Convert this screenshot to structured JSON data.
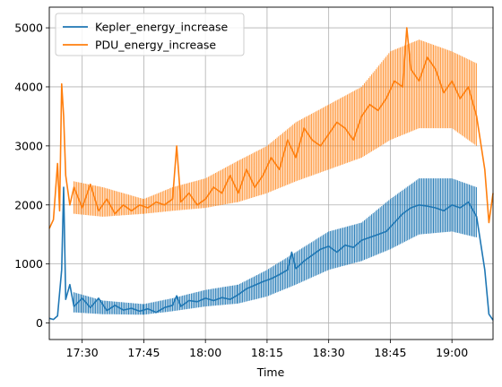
{
  "chart_data": {
    "type": "line",
    "title": "",
    "xlabel": "Time",
    "ylabel": "",
    "x_unit": "HH:MM (time of day)",
    "xlim": [
      "17:22",
      "19:10"
    ],
    "ylim": [
      -280,
      5350
    ],
    "x_ticks": [
      "17:30",
      "17:45",
      "18:00",
      "18:15",
      "18:30",
      "18:45",
      "19:00"
    ],
    "y_ticks": [
      0,
      1000,
      2000,
      3000,
      4000,
      5000
    ],
    "grid": true,
    "legend_position": "top-left",
    "series": [
      {
        "name": "Kepler_energy_increase",
        "color": "#1f77b4",
        "points": [
          [
            "17:22",
            80
          ],
          [
            "17:23",
            60
          ],
          [
            "17:24",
            120
          ],
          [
            "17:25",
            900
          ],
          [
            "17:25.5",
            2300
          ],
          [
            "17:26",
            400
          ],
          [
            "17:27",
            650
          ],
          [
            "17:28",
            280
          ],
          [
            "17:30",
            420
          ],
          [
            "17:32",
            260
          ],
          [
            "17:34",
            420
          ],
          [
            "17:36",
            210
          ],
          [
            "17:38",
            300
          ],
          [
            "17:40",
            220
          ],
          [
            "17:42",
            250
          ],
          [
            "17:44",
            200
          ],
          [
            "17:46",
            240
          ],
          [
            "17:48",
            180
          ],
          [
            "17:50",
            260
          ],
          [
            "17:52",
            300
          ],
          [
            "17:53",
            460
          ],
          [
            "17:54",
            280
          ],
          [
            "17:56",
            380
          ],
          [
            "17:58",
            360
          ],
          [
            "18:00",
            420
          ],
          [
            "18:02",
            380
          ],
          [
            "18:04",
            430
          ],
          [
            "18:06",
            400
          ],
          [
            "18:08",
            480
          ],
          [
            "18:10",
            580
          ],
          [
            "18:12",
            640
          ],
          [
            "18:14",
            700
          ],
          [
            "18:16",
            750
          ],
          [
            "18:18",
            820
          ],
          [
            "18:20",
            900
          ],
          [
            "18:21",
            1200
          ],
          [
            "18:22",
            920
          ],
          [
            "18:24",
            1050
          ],
          [
            "18:26",
            1150
          ],
          [
            "18:28",
            1250
          ],
          [
            "18:30",
            1300
          ],
          [
            "18:32",
            1200
          ],
          [
            "18:34",
            1320
          ],
          [
            "18:36",
            1280
          ],
          [
            "18:38",
            1400
          ],
          [
            "18:40",
            1450
          ],
          [
            "18:42",
            1500
          ],
          [
            "18:44",
            1550
          ],
          [
            "18:46",
            1700
          ],
          [
            "18:48",
            1850
          ],
          [
            "18:50",
            1950
          ],
          [
            "18:52",
            2000
          ],
          [
            "18:54",
            1980
          ],
          [
            "18:56",
            1950
          ],
          [
            "18:58",
            1900
          ],
          [
            "19:00",
            2000
          ],
          [
            "19:02",
            1950
          ],
          [
            "19:04",
            2050
          ],
          [
            "19:06",
            1800
          ],
          [
            "19:08",
            900
          ],
          [
            "19:09",
            150
          ],
          [
            "19:10",
            50
          ]
        ],
        "band": [
          [
            "17:28",
            180,
            520
          ],
          [
            "17:35",
            150,
            380
          ],
          [
            "17:45",
            140,
            320
          ],
          [
            "17:52",
            200,
            420
          ],
          [
            "18:00",
            280,
            560
          ],
          [
            "18:08",
            330,
            650
          ],
          [
            "18:15",
            450,
            900
          ],
          [
            "18:22",
            650,
            1200
          ],
          [
            "18:30",
            900,
            1550
          ],
          [
            "18:38",
            1050,
            1700
          ],
          [
            "18:45",
            1250,
            2100
          ],
          [
            "18:52",
            1500,
            2450
          ],
          [
            "19:00",
            1550,
            2450
          ],
          [
            "19:06",
            1450,
            2300
          ]
        ]
      },
      {
        "name": "PDU_energy_increase",
        "color": "#ff7f0e",
        "points": [
          [
            "17:22",
            1600
          ],
          [
            "17:23",
            1750
          ],
          [
            "17:24",
            2700
          ],
          [
            "17:24.5",
            1900
          ],
          [
            "17:25",
            4050
          ],
          [
            "17:25.5",
            3500
          ],
          [
            "17:26",
            2500
          ],
          [
            "17:27",
            2000
          ],
          [
            "17:28",
            2300
          ],
          [
            "17:30",
            1950
          ],
          [
            "17:32",
            2350
          ],
          [
            "17:34",
            1900
          ],
          [
            "17:36",
            2100
          ],
          [
            "17:38",
            1850
          ],
          [
            "17:40",
            2000
          ],
          [
            "17:42",
            1900
          ],
          [
            "17:44",
            2000
          ],
          [
            "17:46",
            1950
          ],
          [
            "17:48",
            2050
          ],
          [
            "17:50",
            2000
          ],
          [
            "17:52",
            2100
          ],
          [
            "17:53",
            3000
          ],
          [
            "17:54",
            2050
          ],
          [
            "17:56",
            2200
          ],
          [
            "17:58",
            2000
          ],
          [
            "18:00",
            2100
          ],
          [
            "18:02",
            2300
          ],
          [
            "18:04",
            2200
          ],
          [
            "18:06",
            2500
          ],
          [
            "18:08",
            2200
          ],
          [
            "18:10",
            2600
          ],
          [
            "18:12",
            2300
          ],
          [
            "18:14",
            2500
          ],
          [
            "18:16",
            2800
          ],
          [
            "18:18",
            2600
          ],
          [
            "18:20",
            3100
          ],
          [
            "18:22",
            2800
          ],
          [
            "18:24",
            3300
          ],
          [
            "18:26",
            3100
          ],
          [
            "18:28",
            3000
          ],
          [
            "18:30",
            3200
          ],
          [
            "18:32",
            3400
          ],
          [
            "18:34",
            3300
          ],
          [
            "18:36",
            3100
          ],
          [
            "18:38",
            3500
          ],
          [
            "18:40",
            3700
          ],
          [
            "18:42",
            3600
          ],
          [
            "18:44",
            3800
          ],
          [
            "18:46",
            4100
          ],
          [
            "18:48",
            4000
          ],
          [
            "18:49",
            5000
          ],
          [
            "18:50",
            4300
          ],
          [
            "18:52",
            4100
          ],
          [
            "18:54",
            4500
          ],
          [
            "18:56",
            4300
          ],
          [
            "18:58",
            3900
          ],
          [
            "19:00",
            4100
          ],
          [
            "19:02",
            3800
          ],
          [
            "19:04",
            4000
          ],
          [
            "19:06",
            3500
          ],
          [
            "19:08",
            2600
          ],
          [
            "19:09",
            1700
          ],
          [
            "19:10",
            2200
          ]
        ],
        "band": [
          [
            "17:28",
            1850,
            2400
          ],
          [
            "17:35",
            1800,
            2300
          ],
          [
            "17:45",
            1850,
            2100
          ],
          [
            "17:52",
            1900,
            2300
          ],
          [
            "18:00",
            1950,
            2450
          ],
          [
            "18:08",
            2050,
            2750
          ],
          [
            "18:15",
            2200,
            3000
          ],
          [
            "18:22",
            2400,
            3400
          ],
          [
            "18:30",
            2600,
            3700
          ],
          [
            "18:38",
            2800,
            4000
          ],
          [
            "18:45",
            3100,
            4600
          ],
          [
            "18:52",
            3300,
            4800
          ],
          [
            "19:00",
            3300,
            4600
          ],
          [
            "19:06",
            3000,
            4400
          ]
        ]
      }
    ]
  }
}
